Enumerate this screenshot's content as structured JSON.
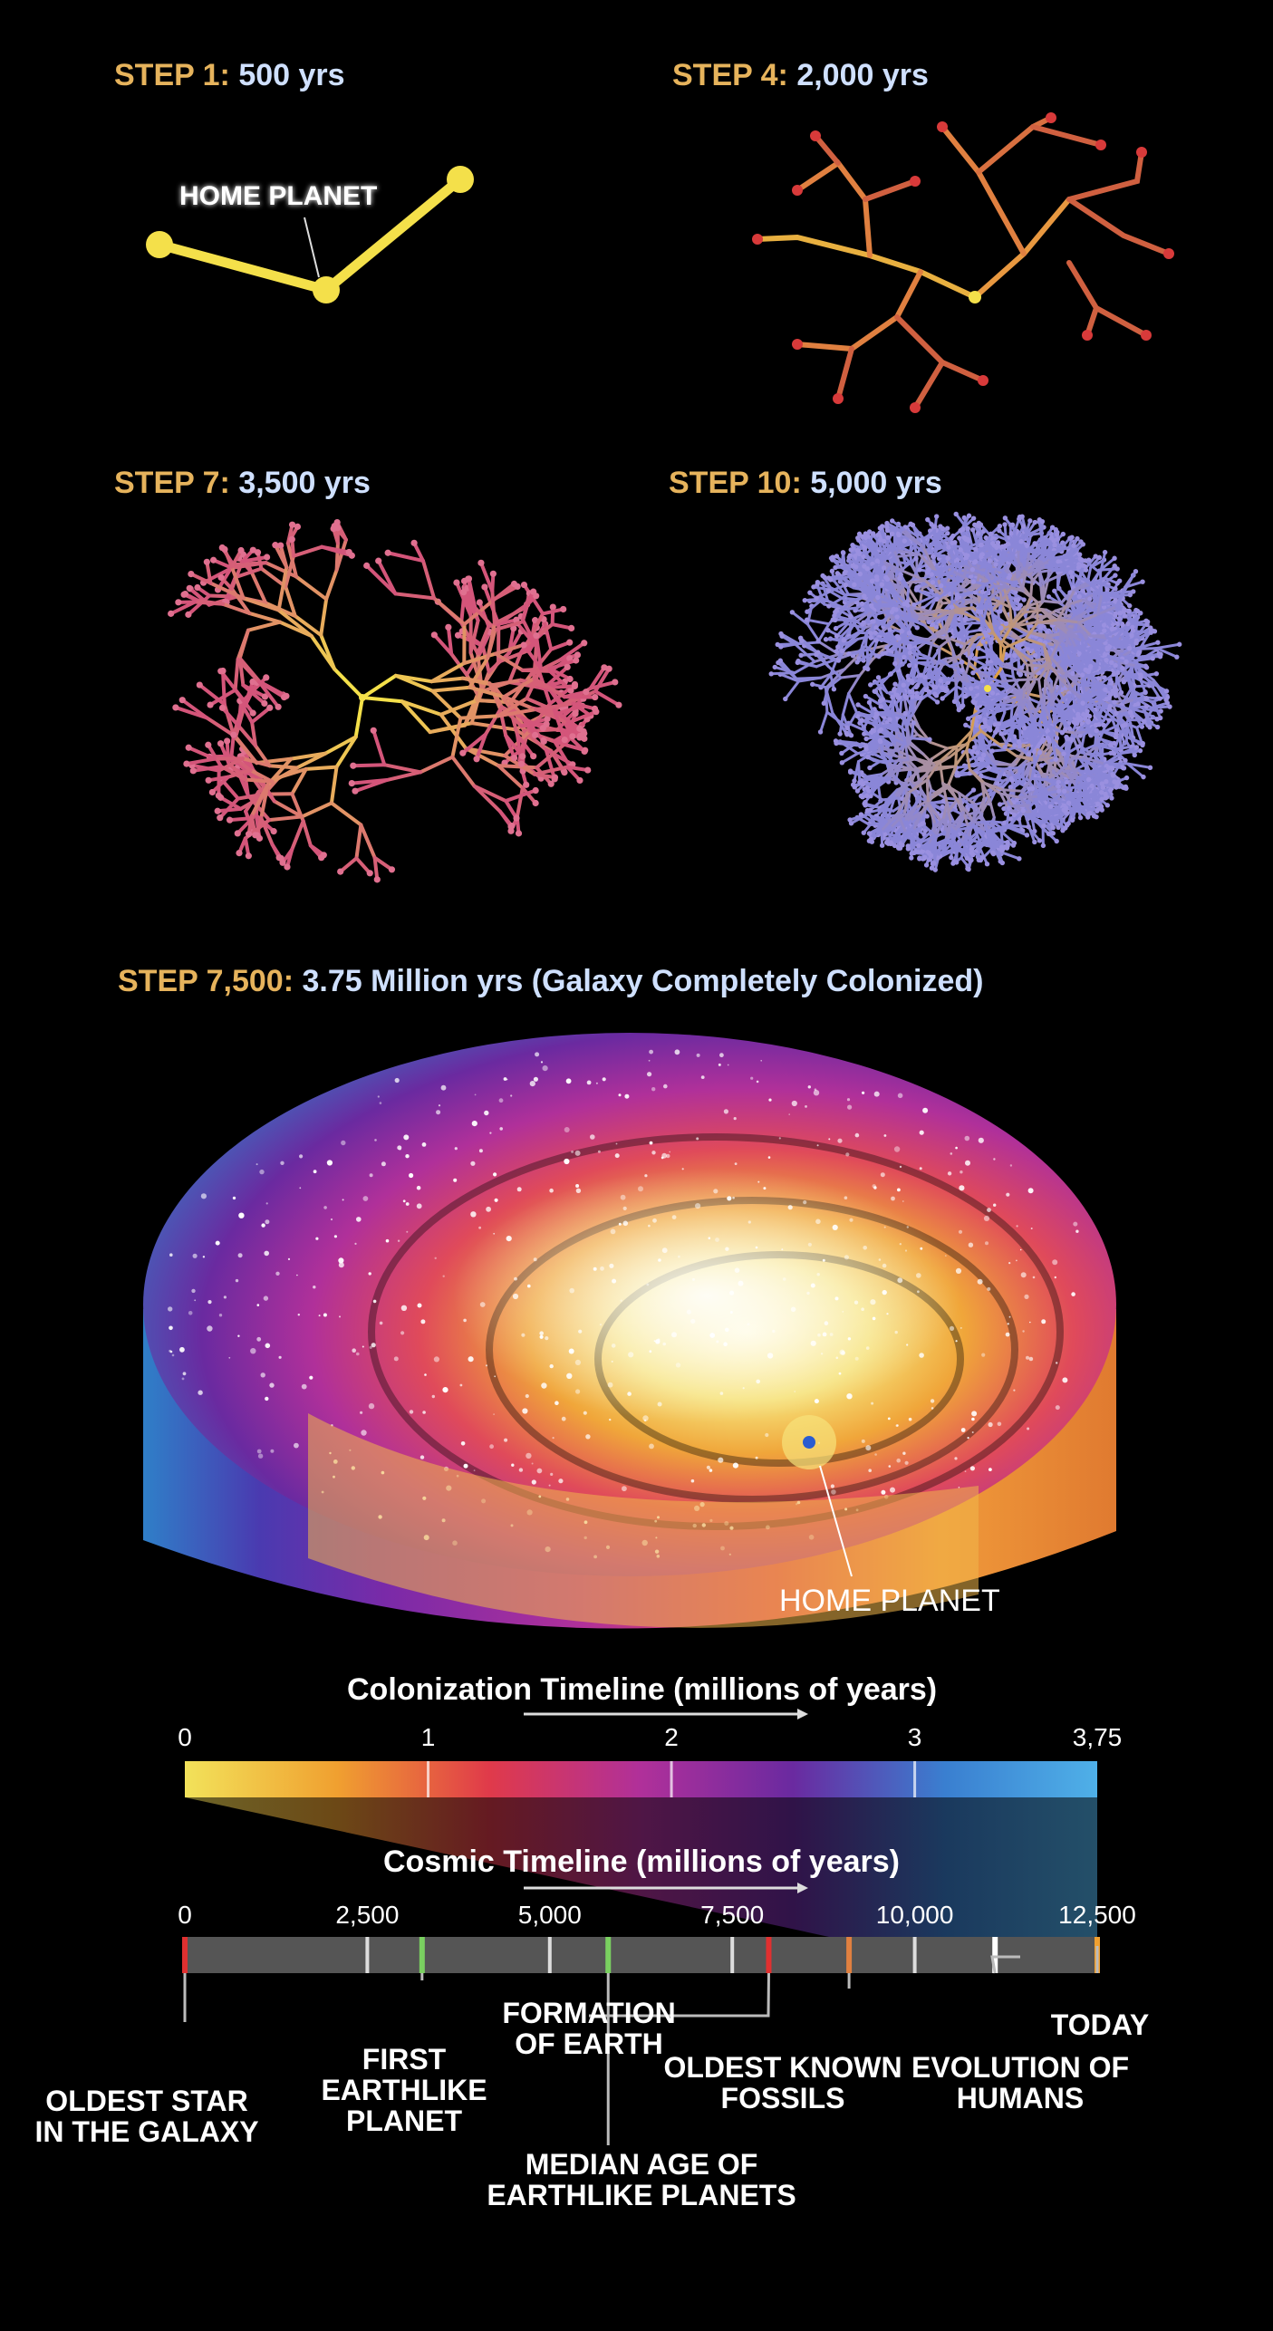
{
  "steps": [
    {
      "label": "STEP 1:",
      "time": "500 yrs"
    },
    {
      "label": "STEP 4:",
      "time": "2,000 yrs"
    },
    {
      "label": "STEP 7:",
      "time": "3,500 yrs"
    },
    {
      "label": "STEP 10:",
      "time": "5,000 yrs"
    }
  ],
  "home_planet_label": "HOME PLANET",
  "final_step": {
    "label": "STEP 7,500:",
    "time": "3.75 Million yrs (Galaxy Completely Colonized)"
  },
  "galaxy_home_label": "HOME PLANET",
  "colonization_timeline": {
    "title": "Colonization Timeline (millions of years)",
    "ticks": [
      "0",
      "1",
      "2",
      "3",
      "3,75"
    ],
    "range": [
      0,
      3.75
    ],
    "gradient": [
      "#f2e25a",
      "#f0a030",
      "#e03a4a",
      "#b0309a",
      "#6a2aa0",
      "#3a7fd0",
      "#4fb0e8"
    ]
  },
  "cosmic_timeline": {
    "title": "Cosmic Timeline (millions of years)",
    "ticks": [
      "0",
      "2,500",
      "5,000",
      "7,500",
      "10,000",
      "12,500"
    ],
    "range": [
      0,
      12500
    ],
    "events": [
      {
        "name": "OLDEST STAR\nIN THE GALAXY",
        "value": 0
      },
      {
        "name": "FIRST\nEARTHLIKE\nPLANET",
        "value": 3250
      },
      {
        "name": "MEDIAN AGE OF\nEARTHLIKE PLANETS",
        "value": 5800
      },
      {
        "name": "FORMATION\nOF EARTH",
        "value": 8000
      },
      {
        "name": "OLDEST KNOWN\nFOSSILS",
        "value": 9100
      },
      {
        "name": "EVOLUTION OF\nHUMANS",
        "value": 11100
      },
      {
        "name": "TODAY",
        "value": 12500
      }
    ]
  },
  "colors": {
    "step_label": "#e6b35c",
    "step_time": "#cfe0ff",
    "branch_start": "#f4e04a",
    "branch_end": "#d83a3a",
    "dense": "#8a86d8"
  }
}
